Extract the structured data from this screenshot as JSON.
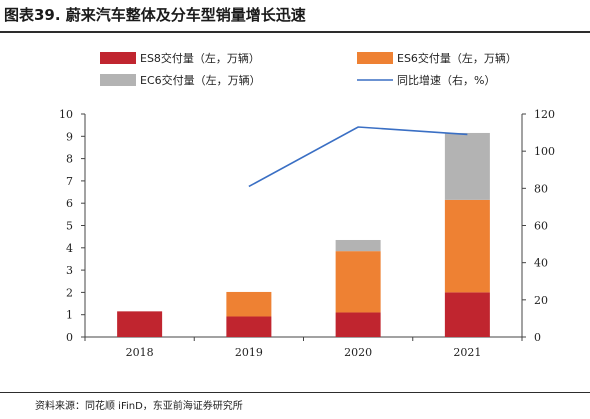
{
  "figure": {
    "title": "图表39. 蔚来汽车整体及分车型销量增长迅速",
    "source": "资料来源：同花顺 iFinD，东亚前海证券研究所"
  },
  "chart_data": {
    "type": "bar",
    "stacked": true,
    "categories": [
      "2018",
      "2019",
      "2020",
      "2021"
    ],
    "series": [
      {
        "name": "ES8交付量（左，万辆）",
        "type": "bar",
        "axis": "left",
        "color": "#c0252f",
        "values": [
          1.15,
          0.92,
          1.1,
          2.0
        ]
      },
      {
        "name": "ES6交付量（左，万辆）",
        "type": "bar",
        "axis": "left",
        "color": "#ee8133",
        "values": [
          0,
          1.1,
          2.75,
          4.15
        ]
      },
      {
        "name": "EC6交付量（左，万辆）",
        "type": "bar",
        "axis": "left",
        "color": "#b3b3b3",
        "values": [
          0,
          0,
          0.5,
          3.0
        ]
      },
      {
        "name": "同比增速（右，%）",
        "type": "line",
        "axis": "right",
        "color": "#3a6fc4",
        "values": [
          null,
          81,
          113,
          109
        ]
      }
    ],
    "y_left": {
      "min": 0,
      "max": 10,
      "step": 1
    },
    "y_right": {
      "min": 0,
      "max": 120,
      "step": 20
    },
    "legend": "top",
    "grid": false
  }
}
